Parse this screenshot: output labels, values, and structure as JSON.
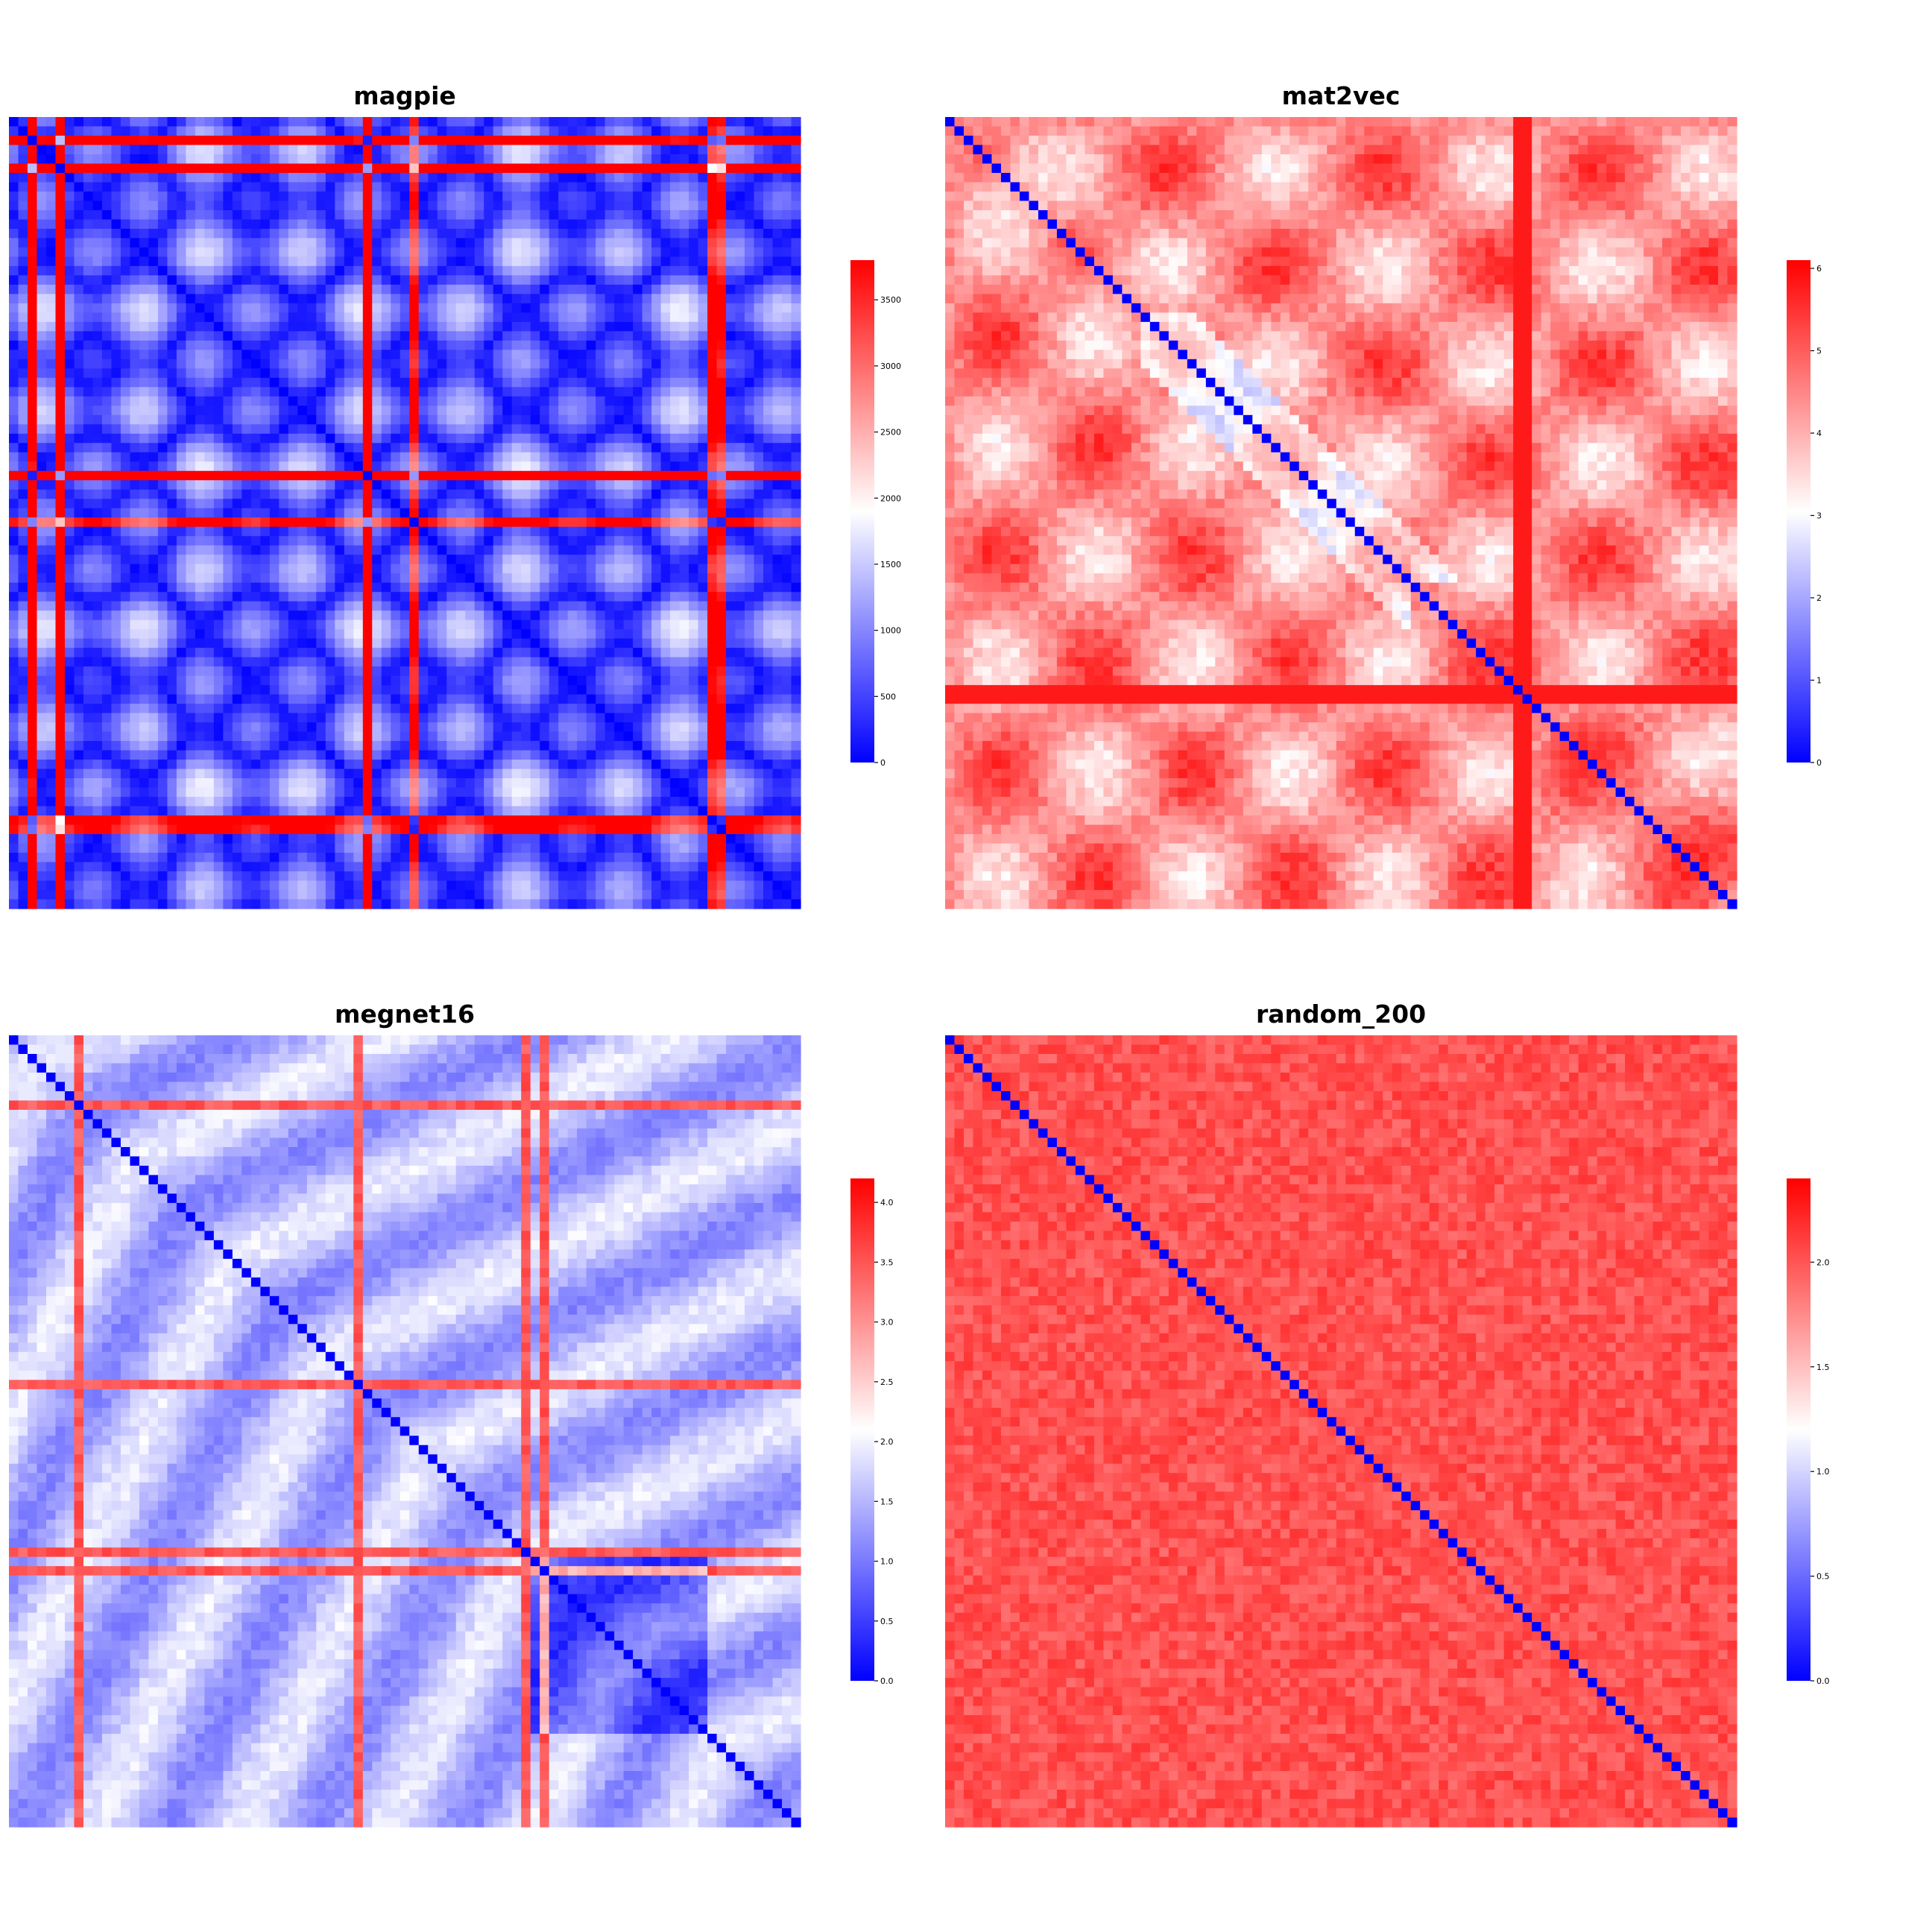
{
  "figure": {
    "colormap": {
      "low": "#0000ff",
      "mid": "#ffffff",
      "high": "#ff0000"
    }
  },
  "chart_data": [
    {
      "type": "heatmap",
      "title": "magpie",
      "matrix_size": 85,
      "pattern": "block",
      "diagonal_value": 0,
      "colorbar": {
        "min": 0,
        "max": 3800,
        "ticks": [
          0,
          500,
          1000,
          1500,
          2000,
          2500,
          3000,
          3500
        ]
      },
      "axis_ticks": "none",
      "grid": false
    },
    {
      "type": "heatmap",
      "title": "mat2vec",
      "matrix_size": 85,
      "pattern": "high_offdiag",
      "diagonal_value": 0,
      "colorbar": {
        "min": 0,
        "max": 6.1,
        "ticks": [
          0,
          1,
          2,
          3,
          4,
          5,
          6
        ]
      },
      "axis_ticks": "none",
      "grid": false
    },
    {
      "type": "heatmap",
      "title": "megnet16",
      "matrix_size": 85,
      "pattern": "low_offdiag",
      "diagonal_value": 0,
      "colorbar": {
        "min": 0,
        "max": 4.2,
        "ticks": [
          0.0,
          0.5,
          1.0,
          1.5,
          2.0,
          2.5,
          3.0,
          3.5,
          4.0
        ]
      },
      "axis_ticks": "none",
      "grid": false
    },
    {
      "type": "heatmap",
      "title": "random_200",
      "matrix_size": 85,
      "pattern": "uniform_high",
      "diagonal_value": 0,
      "colorbar": {
        "min": 0,
        "max": 2.4,
        "ticks": [
          0.0,
          0.5,
          1.0,
          1.5,
          2.0
        ]
      },
      "axis_ticks": "none",
      "grid": false
    }
  ]
}
